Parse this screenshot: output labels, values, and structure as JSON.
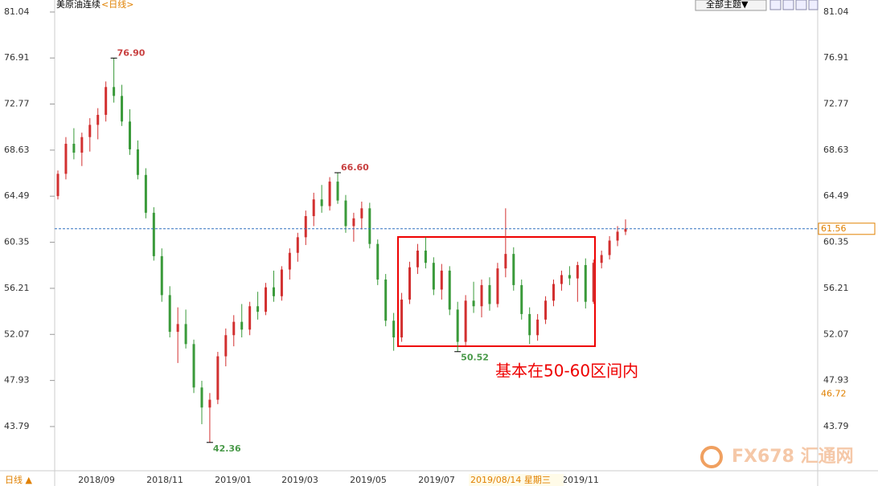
{
  "chart_data": {
    "type": "ohlc",
    "title": "美原油连续",
    "period": "<日线>",
    "theme_button": "全部主题▼",
    "tab": "日线 ▲",
    "ylim": [
      39.89,
      82.12
    ],
    "yticks": [
      81.04,
      76.91,
      72.77,
      68.63,
      64.49,
      60.35,
      56.21,
      52.07,
      47.93,
      43.79
    ],
    "x_labels": [
      "2018/09",
      "2018/11",
      "2019/01",
      "2019/03",
      "2019/05",
      "2019/07",
      "2019/11"
    ],
    "crosshair_date": "2019/08/14 星期三",
    "last_price": 61.56,
    "marker_price": 46.72,
    "annotation_text": "基本在50-60区间内",
    "watermark": "FX678 汇通网",
    "up_color": "#d23030",
    "down_color": "#3a9a3a",
    "extremes": [
      {
        "value": 76.9,
        "label": "76.90",
        "kind": "high"
      },
      {
        "value": 66.6,
        "label": "66.60",
        "kind": "high"
      },
      {
        "value": 42.36,
        "label": "42.36",
        "kind": "low"
      },
      {
        "value": 50.52,
        "label": "50.52",
        "kind": "low"
      }
    ],
    "ohlc": [
      [
        64.5,
        66.8,
        64.2,
        66.5
      ],
      [
        66.5,
        69.8,
        66.0,
        69.2
      ],
      [
        69.2,
        70.6,
        67.8,
        68.4
      ],
      [
        68.4,
        70.2,
        67.2,
        69.8
      ],
      [
        69.8,
        71.5,
        68.5,
        70.9
      ],
      [
        70.9,
        72.4,
        69.6,
        71.8
      ],
      [
        71.8,
        74.8,
        71.2,
        74.3
      ],
      [
        74.3,
        76.9,
        72.9,
        73.5
      ],
      [
        73.5,
        74.5,
        70.8,
        71.2
      ],
      [
        71.2,
        72.3,
        68.2,
        68.7
      ],
      [
        68.7,
        69.5,
        66.0,
        66.4
      ],
      [
        66.4,
        67.0,
        62.5,
        63.0
      ],
      [
        63.0,
        63.5,
        58.7,
        59.1
      ],
      [
        59.1,
        59.8,
        55.0,
        55.6
      ],
      [
        55.6,
        56.4,
        51.8,
        52.3
      ],
      [
        52.3,
        54.5,
        49.5,
        53.0
      ],
      [
        53.0,
        54.3,
        50.8,
        51.2
      ],
      [
        51.2,
        51.6,
        46.8,
        47.3
      ],
      [
        47.3,
        47.9,
        44.0,
        45.5
      ],
      [
        45.5,
        46.8,
        42.36,
        46.2
      ],
      [
        46.2,
        50.5,
        45.8,
        50.1
      ],
      [
        50.1,
        52.6,
        49.2,
        52.0
      ],
      [
        52.0,
        53.8,
        51.0,
        53.2
      ],
      [
        53.2,
        54.8,
        51.8,
        52.5
      ],
      [
        52.5,
        55.0,
        52.0,
        54.6
      ],
      [
        54.6,
        55.9,
        53.4,
        54.1
      ],
      [
        54.1,
        56.7,
        53.8,
        56.3
      ],
      [
        56.3,
        57.8,
        55.0,
        55.5
      ],
      [
        55.5,
        58.2,
        55.1,
        57.9
      ],
      [
        57.9,
        59.8,
        57.0,
        59.4
      ],
      [
        59.4,
        61.2,
        58.6,
        60.8
      ],
      [
        60.8,
        63.2,
        60.1,
        62.7
      ],
      [
        62.7,
        64.8,
        61.8,
        64.2
      ],
      [
        64.2,
        65.5,
        63.0,
        63.6
      ],
      [
        63.6,
        66.2,
        63.2,
        65.8
      ],
      [
        65.8,
        66.6,
        63.8,
        64.1
      ],
      [
        64.1,
        64.6,
        61.2,
        61.8
      ],
      [
        61.8,
        63.0,
        60.4,
        62.5
      ],
      [
        62.5,
        64.0,
        61.5,
        63.4
      ],
      [
        63.4,
        63.9,
        59.8,
        60.2
      ],
      [
        60.2,
        60.6,
        56.5,
        57.0
      ],
      [
        57.0,
        57.5,
        52.8,
        53.3
      ],
      [
        53.3,
        54.0,
        50.6,
        51.8
      ],
      [
        51.8,
        55.8,
        51.4,
        55.2
      ],
      [
        55.2,
        58.6,
        54.8,
        58.1
      ],
      [
        58.1,
        60.2,
        57.5,
        59.6
      ],
      [
        59.6,
        60.8,
        58.0,
        58.5
      ],
      [
        58.5,
        59.0,
        55.6,
        56.1
      ],
      [
        56.1,
        58.4,
        55.2,
        57.8
      ],
      [
        57.8,
        58.2,
        53.8,
        54.3
      ],
      [
        54.3,
        55.0,
        50.52,
        51.4
      ],
      [
        51.4,
        55.6,
        51.0,
        55.1
      ],
      [
        55.1,
        56.8,
        54.0,
        54.6
      ],
      [
        54.6,
        57.0,
        53.6,
        56.5
      ],
      [
        56.5,
        57.2,
        54.2,
        54.8
      ],
      [
        54.8,
        58.5,
        54.5,
        58.0
      ],
      [
        58.0,
        63.4,
        57.2,
        59.3
      ],
      [
        59.3,
        59.9,
        56.0,
        56.5
      ],
      [
        56.5,
        57.0,
        53.4,
        53.9
      ],
      [
        53.9,
        54.5,
        51.2,
        52.0
      ],
      [
        52.0,
        53.9,
        51.5,
        53.4
      ],
      [
        53.4,
        55.5,
        53.0,
        55.1
      ],
      [
        55.1,
        57.0,
        54.6,
        56.6
      ],
      [
        56.6,
        57.8,
        56.0,
        57.4
      ],
      [
        57.4,
        58.2,
        56.5,
        57.1
      ],
      [
        57.1,
        58.6,
        55.0,
        58.3
      ],
      [
        58.3,
        58.9,
        54.4,
        55.0
      ],
      [
        55.0,
        58.8,
        54.8,
        58.5
      ],
      [
        58.5,
        59.6,
        58.0,
        59.2
      ],
      [
        59.2,
        60.9,
        58.8,
        60.5
      ],
      [
        60.5,
        61.8,
        60.0,
        61.3
      ],
      [
        61.3,
        62.4,
        61.0,
        61.56
      ]
    ]
  }
}
